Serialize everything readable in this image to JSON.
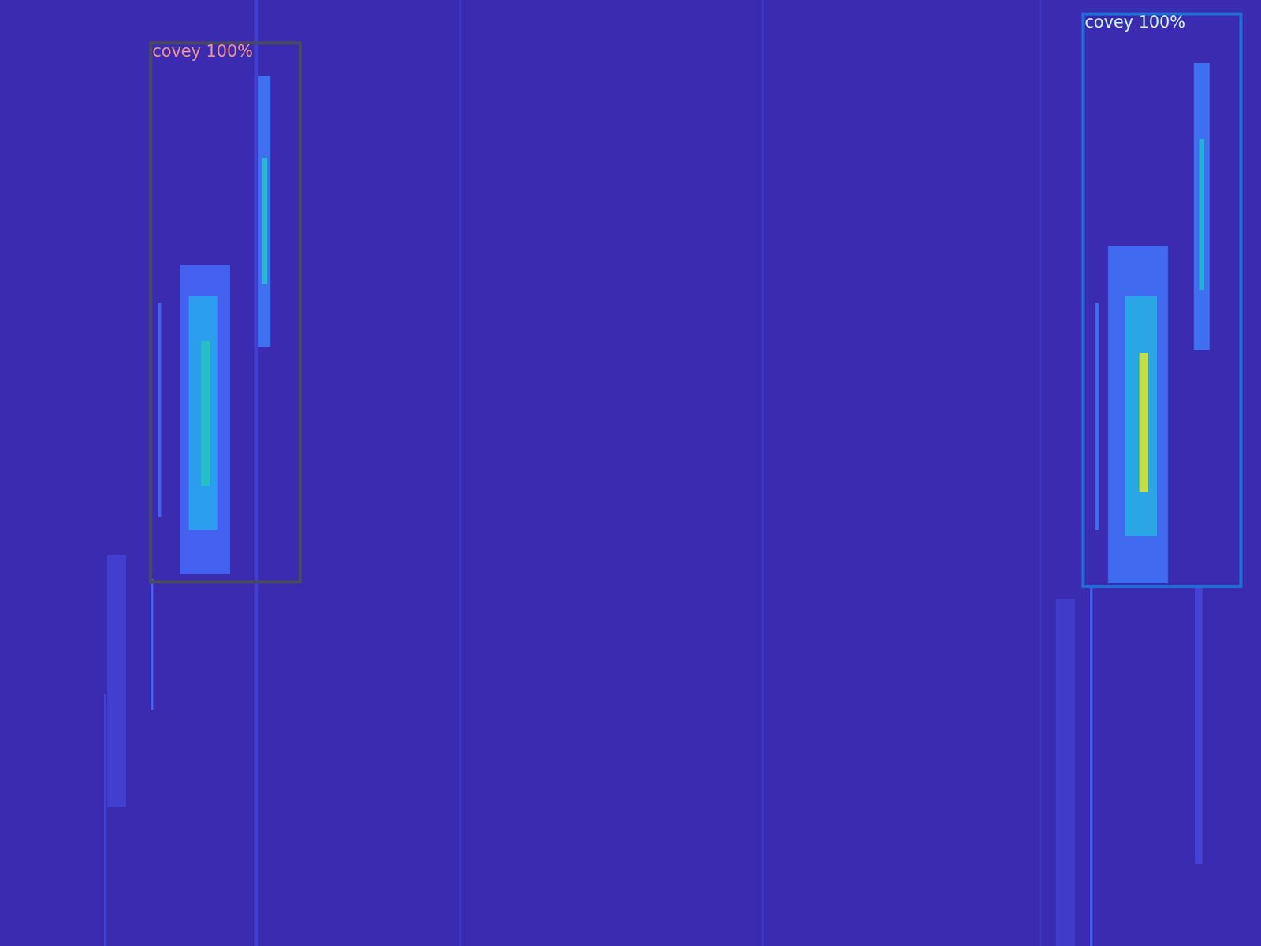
{
  "chart_data": {
    "type": "heatmap",
    "xlim": [
      0,
      2000
    ],
    "ylim": [
      0,
      1500
    ],
    "tick_labels": false,
    "intensity_range": [
      0,
      1
    ],
    "streaks": [
      {
        "x": 325,
        "y0": 420,
        "y1": 910,
        "width": 80,
        "intensity": 0.3
      },
      {
        "x": 322,
        "y0": 470,
        "y1": 840,
        "width": 45,
        "intensity": 0.5
      },
      {
        "x": 326,
        "y0": 540,
        "y1": 770,
        "width": 14,
        "intensity": 0.7
      },
      {
        "x": 418,
        "y0": 120,
        "y1": 550,
        "width": 22,
        "intensity": 0.35
      },
      {
        "x": 420,
        "y0": 250,
        "y1": 450,
        "width": 8,
        "intensity": 0.65
      },
      {
        "x": 406,
        "y0": 0,
        "y1": 1500,
        "width": 6,
        "intensity": 0.12
      },
      {
        "x": 241,
        "y0": 918,
        "y1": 1125,
        "width": 4,
        "intensity": 0.3
      },
      {
        "x": 185,
        "y0": 880,
        "y1": 1280,
        "width": 30,
        "intensity": 0.12
      },
      {
        "x": 167,
        "y0": 1100,
        "y1": 1500,
        "width": 4,
        "intensity": 0.15
      },
      {
        "x": 253,
        "y0": 480,
        "y1": 820,
        "width": 5,
        "intensity": 0.3
      },
      {
        "x": 1805,
        "y0": 390,
        "y1": 925,
        "width": 95,
        "intensity": 0.33
      },
      {
        "x": 1810,
        "y0": 470,
        "y1": 850,
        "width": 50,
        "intensity": 0.55
      },
      {
        "x": 1814,
        "y0": 560,
        "y1": 780,
        "width": 14,
        "intensity": 0.95
      },
      {
        "x": 1906,
        "y0": 100,
        "y1": 555,
        "width": 25,
        "intensity": 0.35
      },
      {
        "x": 1906,
        "y0": 220,
        "y1": 460,
        "width": 8,
        "intensity": 0.6
      },
      {
        "x": 1740,
        "y0": 480,
        "y1": 840,
        "width": 5,
        "intensity": 0.35
      },
      {
        "x": 1731,
        "y0": 930,
        "y1": 1500,
        "width": 4,
        "intensity": 0.3
      },
      {
        "x": 1901,
        "y0": 930,
        "y1": 1370,
        "width": 12,
        "intensity": 0.15
      },
      {
        "x": 1690,
        "y0": 950,
        "y1": 1500,
        "width": 30,
        "intensity": 0.1
      },
      {
        "x": 1650,
        "y0": 0,
        "y1": 1500,
        "width": 3,
        "intensity": 0.08
      },
      {
        "x": 730,
        "y0": 0,
        "y1": 1500,
        "width": 3,
        "intensity": 0.06
      },
      {
        "x": 1210,
        "y0": 0,
        "y1": 1500,
        "width": 3,
        "intensity": 0.06
      }
    ],
    "boxes": [
      {
        "label": "covey 100%",
        "x0": 239,
        "y0": 68,
        "x1": 476,
        "y1": 923,
        "color": "#4a4a60"
      },
      {
        "label": "covey 100%",
        "x0": 1718,
        "y0": 22,
        "x1": 1968,
        "y1": 930,
        "color": "#1f6fd6"
      }
    ]
  }
}
